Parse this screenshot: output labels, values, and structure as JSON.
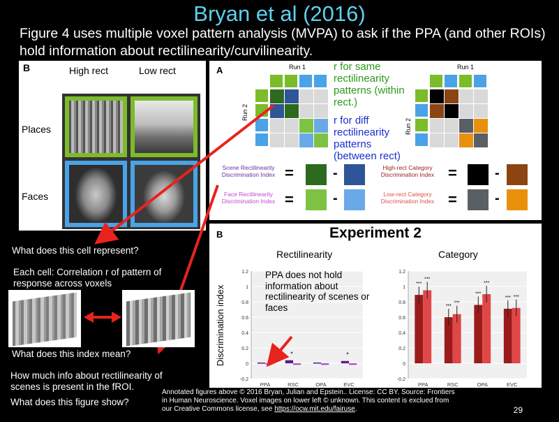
{
  "slide": {
    "title": "Bryan et al (2016)",
    "subtitle": "Figure 4 uses multiple voxel pattern analysis (MVPA) to ask if the PPA (and other ROIs) hold information about rectilinearity/curvilinearity.",
    "page_number": "29"
  },
  "panel_b_left": {
    "letter": "B",
    "col1": "High rect",
    "col2": "Low rect",
    "row1": "Places",
    "row2": "Faces"
  },
  "panel_a": {
    "letter": "A",
    "run1_left": "Run 1",
    "run1_right": "Run 1",
    "run2_left": "Run 2",
    "run2_right": "Run 2",
    "annotation_same": "r for same rectilinearity patterns (within rect.)",
    "annotation_diff": "r for diff rectilinearity patterns (between rect)",
    "scene_index": "Scene Rectilinearity Discrimination Index",
    "face_index": "Face Rectilinearity Discrimination Index",
    "high_rect_index": "High-rect Category Discrimination Index",
    "low_rect_index": "Low-rect Category Discrimination Index",
    "equals": "=",
    "minus": "-"
  },
  "panel_b_chart": {
    "letter": "B",
    "experiment_title": "Experiment 2",
    "sub1": "Rectilinearity",
    "sub2": "Category",
    "ylabel": "Discrimination index",
    "annotation": "PPA does not hold information about rectilinearity of scenes or faces",
    "star": "*",
    "stars3": "***"
  },
  "chart_data": [
    {
      "type": "bar",
      "title": "Rectilinearity",
      "ylabel": "Discrimination index",
      "categories": [
        "PPA",
        "RSC",
        "OPA",
        "EVC"
      ],
      "ylim": [
        -0.2,
        1.2
      ],
      "yticks": [
        "-0.2",
        "0",
        "0.2",
        "0.4",
        "0.6",
        "0.8",
        "1",
        "1.2"
      ],
      "series": [
        {
          "values": [
            0.01,
            0.04,
            0.01,
            0.03
          ],
          "color": "#5b1a8a"
        },
        {
          "values": [
            0.0,
            -0.02,
            -0.02,
            -0.02
          ],
          "color": "#a64dcf"
        }
      ],
      "significance": [
        "",
        "*",
        "",
        "*"
      ]
    },
    {
      "type": "bar",
      "title": "Category",
      "categories": [
        "PPA",
        "RSC",
        "OPA",
        "EVC"
      ],
      "ylim": [
        -0.2,
        1.2
      ],
      "yticks": [
        "-0.2",
        "0",
        "0.2",
        "0.4",
        "0.6",
        "0.8",
        "1",
        "1.2"
      ],
      "series": [
        {
          "values": [
            0.89,
            0.6,
            0.76,
            0.71
          ],
          "color": "#9b1b1b"
        },
        {
          "values": [
            0.95,
            0.64,
            0.9,
            0.72
          ],
          "color": "#e04848"
        }
      ],
      "significance": [
        "***",
        "***",
        "***",
        "***"
      ]
    }
  ],
  "questions": {
    "q1": "What does this cell represent?",
    "q2": "Each cell: Correlation r of pattern of response across voxels",
    "q3": "What does this index mean?",
    "q4": "How much info about rectilinearity of scenes is present in the fROI.",
    "q5": "What does this figure show?"
  },
  "footer": {
    "line1": "Annotated figures above © 2016 Bryan, Julian and Epstein.. License: CC BY. Source: Frontiers",
    "line2": "in Human Neuroscience. Voxel images on lower left © unknown. This content is exclued from",
    "line3_prefix": "our Creative Commons license, see ",
    "link": "https://ocw.mit.edu/fairuse",
    "line3_suffix": "."
  },
  "colors": {
    "title": "#5fd0ee",
    "green_dark": "#2d6a1f",
    "green_light": "#7dc243",
    "blue_dark": "#2e5597",
    "blue_light": "#6aa9e8",
    "arrow_red": "#e8231e",
    "annotation_green": "#2a9a1a",
    "annotation_blue": "#1a2fcf"
  }
}
